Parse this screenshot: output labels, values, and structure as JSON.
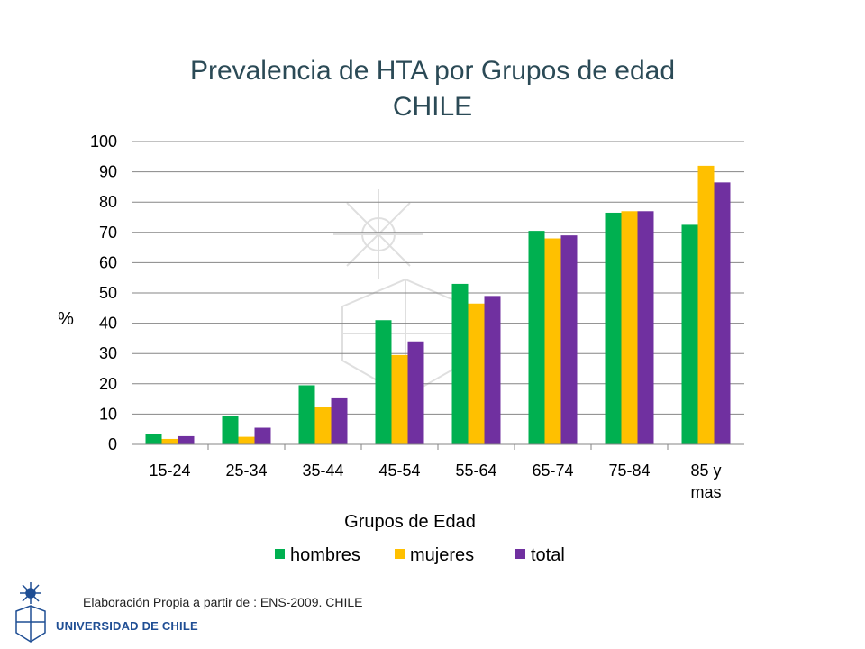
{
  "chart_data": {
    "type": "bar",
    "title": [
      "Prevalencia de HTA por Grupos de edad",
      "CHILE"
    ],
    "xlabel": "Grupos de Edad",
    "ylabel": "%",
    "ylim": [
      0,
      100
    ],
    "yticks": [
      0,
      10,
      20,
      30,
      40,
      50,
      60,
      70,
      80,
      90,
      100
    ],
    "grid": true,
    "legend_position": "bottom",
    "categories": [
      [
        "15-24"
      ],
      [
        "25-34"
      ],
      [
        "35-44"
      ],
      [
        "45-54"
      ],
      [
        "55-64"
      ],
      [
        "65-74"
      ],
      [
        "75-84"
      ],
      [
        "85 y",
        "mas"
      ]
    ],
    "series": [
      {
        "name": "hombres",
        "color": "#00b050",
        "values": [
          3.5,
          9.5,
          19.5,
          41,
          53,
          70.5,
          76.5,
          72.5
        ]
      },
      {
        "name": "mujeres",
        "color": "#ffc000",
        "values": [
          1.8,
          2.5,
          12.5,
          29.5,
          46.5,
          68,
          77,
          92
        ]
      },
      {
        "name": "total",
        "color": "#7030a0",
        "values": [
          2.7,
          5.5,
          15.5,
          34,
          49,
          69,
          77,
          86.5
        ]
      }
    ]
  },
  "footer": {
    "source": "Elaboración Propia a partir de : ENS-2009. CHILE",
    "institution": "UNIVERSIDAD DE CHILE"
  }
}
